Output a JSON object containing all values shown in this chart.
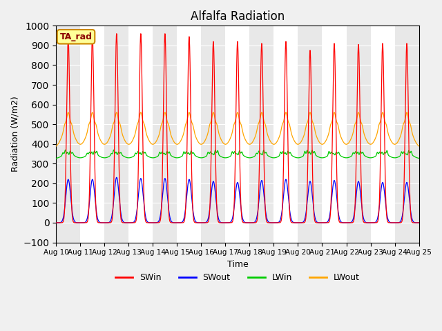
{
  "title": "Alfalfa Radiation",
  "xlabel": "Time",
  "ylabel": "Radiation (W/m2)",
  "ylim": [
    -100,
    1000
  ],
  "n_days": 15,
  "tick_labels": [
    "Aug 10",
    "Aug 11",
    "Aug 12",
    "Aug 13",
    "Aug 14",
    "Aug 15",
    "Aug 16",
    "Aug 17",
    "Aug 18",
    "Aug 19",
    "Aug 20",
    "Aug 21",
    "Aug 22",
    "Aug 23",
    "Aug 24",
    "Aug 25"
  ],
  "colors": {
    "SWin": "#ff0000",
    "SWout": "#0000ff",
    "LWin": "#00cc00",
    "LWout": "#ffa500"
  },
  "legend_label": "TA_rad",
  "plot_bg": "#ffffff",
  "fig_bg": "#f0f0f0",
  "band_color": "#e8e8e8",
  "swin_peaks": [
    935,
    945,
    960,
    960,
    960,
    945,
    920,
    920,
    910,
    920,
    875,
    910,
    905,
    910,
    910
  ],
  "swout_peaks": [
    220,
    220,
    230,
    225,
    225,
    220,
    210,
    205,
    215,
    220,
    210,
    215,
    210,
    205,
    205
  ],
  "lwin_base": 325,
  "lwin_day_dip": -15,
  "lwin_bump_amp": 25,
  "lwout_base": 380,
  "lwout_broad_amp": 120,
  "lwout_sharp_amp": 60
}
